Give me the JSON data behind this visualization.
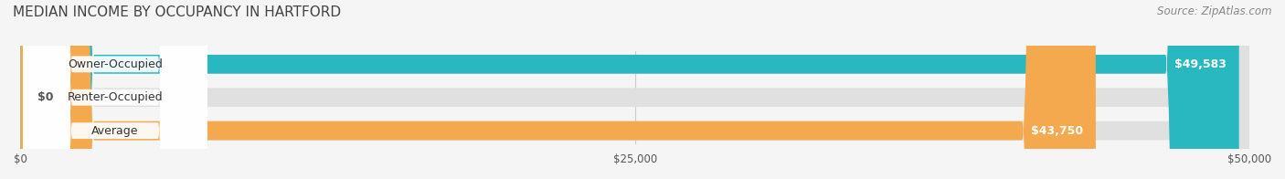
{
  "title": "MEDIAN INCOME BY OCCUPANCY IN HARTFORD",
  "source": "Source: ZipAtlas.com",
  "categories": [
    "Owner-Occupied",
    "Renter-Occupied",
    "Average"
  ],
  "values": [
    49583,
    0,
    43750
  ],
  "bar_colors": [
    "#29b8c0",
    "#c4a8d4",
    "#f5a94e"
  ],
  "bar_bg_color": "#e8e8e8",
  "label_values": [
    "$49,583",
    "$0",
    "$43,750"
  ],
  "xlim": [
    0,
    50000
  ],
  "xticks": [
    0,
    25000,
    50000
  ],
  "xtick_labels": [
    "$0",
    "$25,000",
    "$50,000"
  ],
  "title_fontsize": 11,
  "source_fontsize": 8.5,
  "label_fontsize": 9,
  "bar_height": 0.55,
  "fig_bg_color": "#f5f5f5",
  "bar_bg_alpha": 1.0,
  "bar_label_color_inside": "#ffffff",
  "bar_label_color_outside": "#555555"
}
